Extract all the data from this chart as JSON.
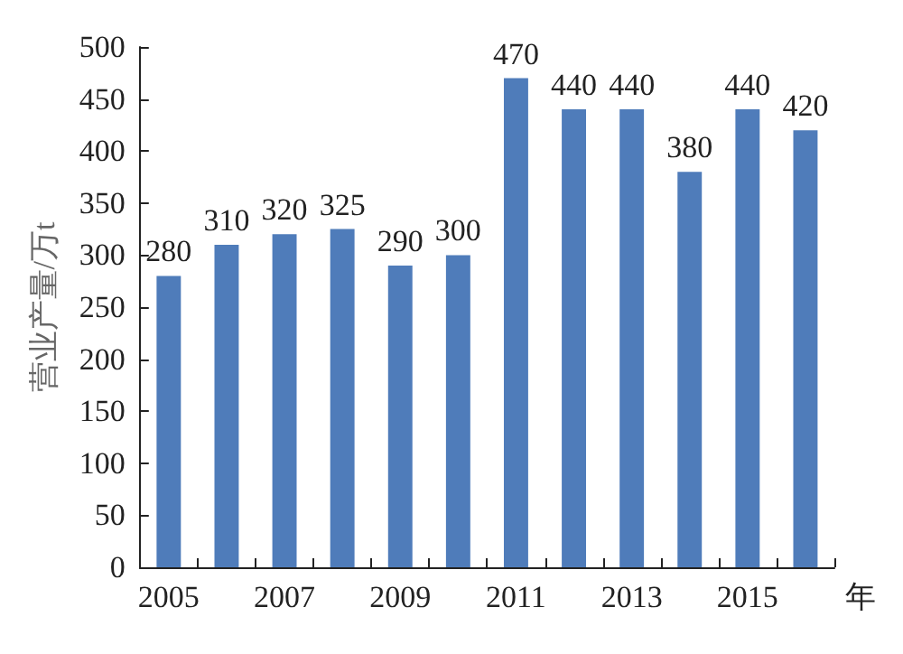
{
  "chart_data": {
    "type": "bar",
    "ylabel": "营业产量/万t",
    "xlabel": "年",
    "categories": [
      "2005",
      null,
      "2007",
      null,
      "2009",
      null,
      "2011",
      null,
      "2013",
      null,
      "2015",
      null
    ],
    "values": [
      280,
      310,
      320,
      325,
      290,
      300,
      470,
      440,
      440,
      380,
      440,
      420
    ],
    "color": "#4f7cba",
    "ylim": [
      0,
      500
    ],
    "yticks": [
      0,
      50,
      100,
      150,
      200,
      250,
      300,
      350,
      400,
      450,
      500
    ],
    "grid": false,
    "data_labels": true
  }
}
